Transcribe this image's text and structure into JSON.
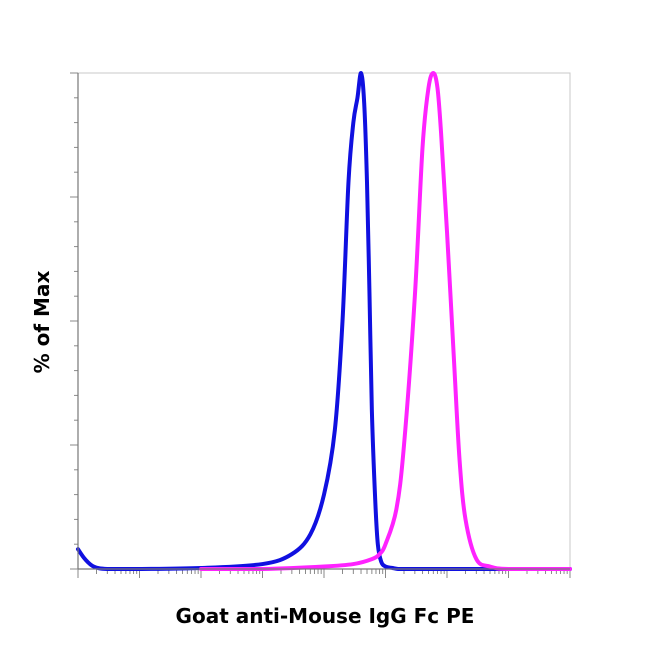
{
  "chart_data": {
    "type": "line",
    "title": "",
    "xlabel": "Goat anti-Mouse IgG Fc PE",
    "ylabel": "% of Max",
    "x_scale": "log",
    "xlim": [
      1,
      100000000
    ],
    "ylim": [
      0,
      100
    ],
    "tick_labels_shown": false,
    "grid": false,
    "legend": "none",
    "series": [
      {
        "color": "#1010e0",
        "x": [
          1,
          1.3,
          1.8,
          3,
          10,
          100,
          1000,
          3000,
          6000,
          10000,
          15000,
          20000,
          25000,
          30000,
          35000,
          40000,
          45000,
          50000,
          55000,
          60000,
          68000,
          75000,
          85000,
          100000,
          130000,
          160000,
          200000,
          300000,
          1000000,
          10000000,
          100000000
        ],
        "values": [
          4,
          2,
          0.5,
          0,
          0,
          0.2,
          1,
          3,
          7,
          15,
          28,
          50,
          78,
          90,
          95,
          100,
          94,
          78,
          55,
          32,
          14,
          5,
          1.5,
          0.5,
          0.2,
          0,
          0,
          0,
          0,
          0,
          0
        ]
      },
      {
        "color": "#ff22ff",
        "x": [
          100,
          1000,
          10000,
          30000,
          60000,
          80000,
          100000,
          150000,
          200000,
          300000,
          400000,
          500000,
          600000,
          700000,
          800000,
          1000000,
          1300000,
          1600000,
          2000000,
          3000000,
          5000000,
          10000000,
          100000000
        ],
        "values": [
          0,
          0,
          0.5,
          1,
          2,
          3,
          5,
          12,
          25,
          55,
          85,
          97,
          100,
          97,
          88,
          68,
          42,
          22,
          10,
          2,
          0.5,
          0,
          0
        ]
      }
    ]
  }
}
